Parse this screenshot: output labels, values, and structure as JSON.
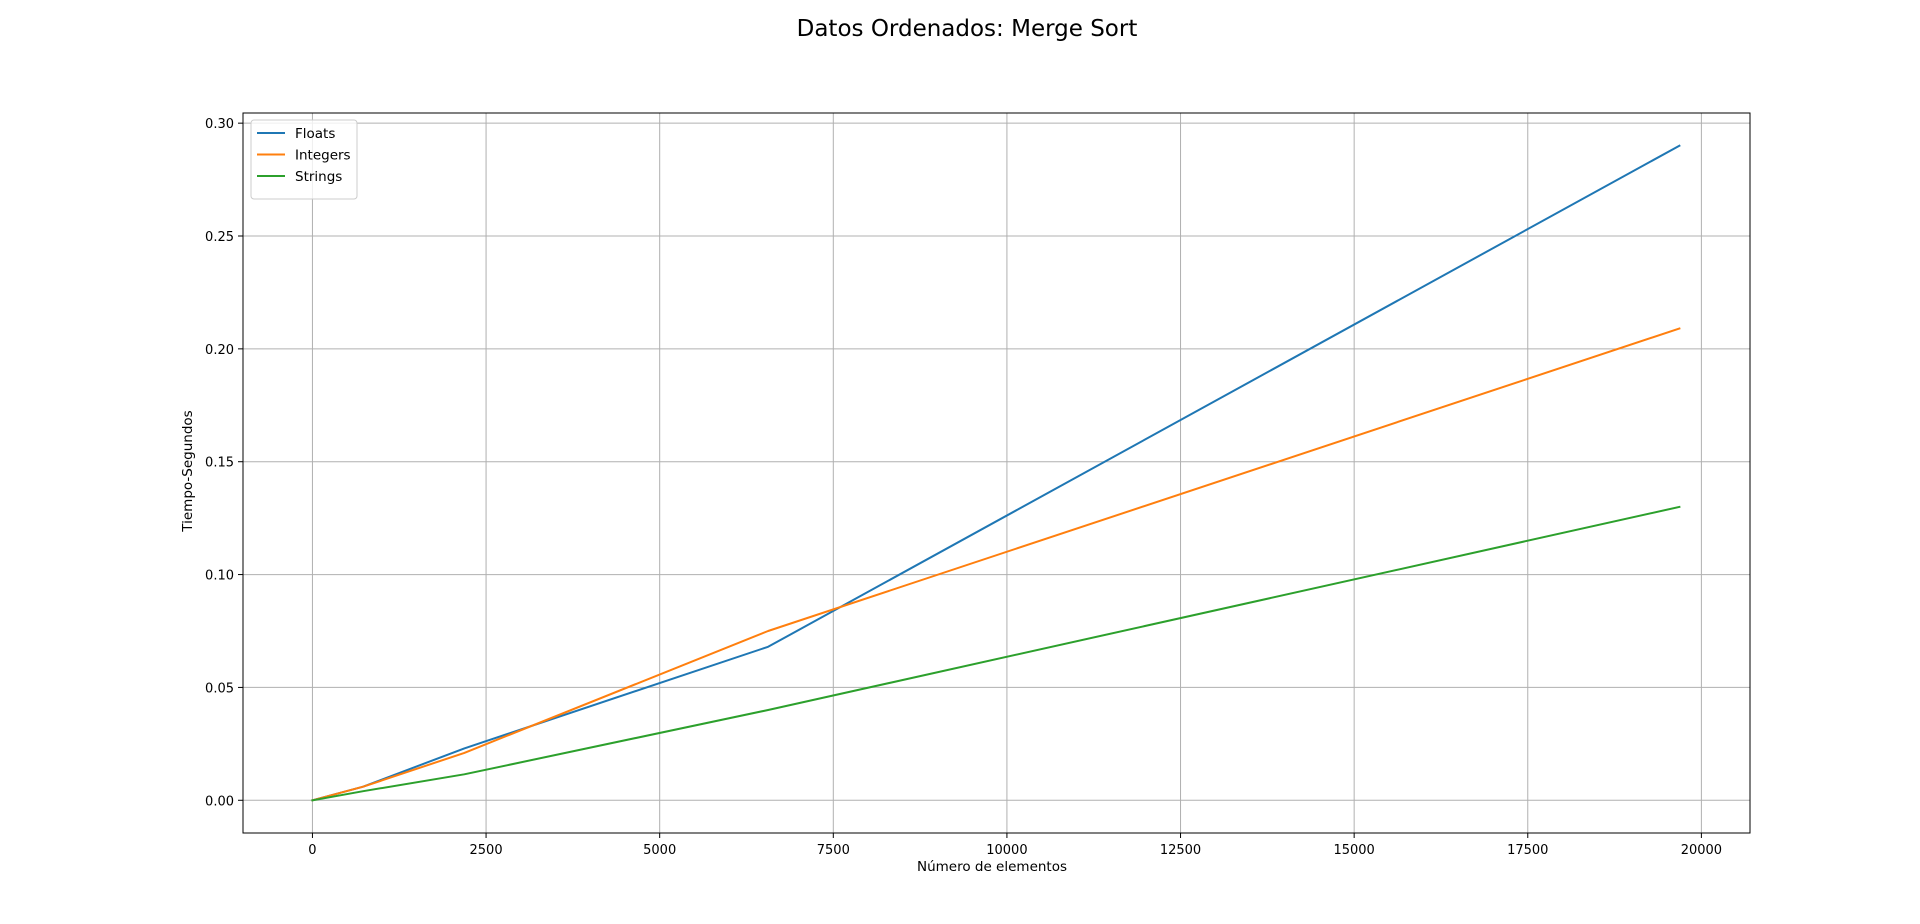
{
  "chart_data": {
    "type": "line",
    "title": "Datos Ordenados: Merge Sort",
    "xlabel": "Número de elementos",
    "ylabel": "Tiempo-Segundos",
    "xlim": [
      -1000,
      20700
    ],
    "ylim": [
      -0.0145,
      0.3045
    ],
    "xticks": [
      0,
      2500,
      5000,
      7500,
      10000,
      12500,
      15000,
      17500,
      20000
    ],
    "xtick_labels": [
      "0",
      "2500",
      "5000",
      "7500",
      "10000",
      "12500",
      "15000",
      "17500",
      "20000"
    ],
    "yticks": [
      0.0,
      0.05,
      0.1,
      0.15,
      0.2,
      0.25,
      0.3
    ],
    "ytick_labels": [
      "0.00",
      "0.05",
      "0.10",
      "0.15",
      "0.20",
      "0.25",
      "0.30"
    ],
    "grid": true,
    "legend_position": "top-left",
    "series": [
      {
        "name": "Floats",
        "color": "#1f77b4",
        "x": [
          0,
          729,
          2187,
          6561,
          19683
        ],
        "y": [
          0.0,
          0.006,
          0.023,
          0.068,
          0.29
        ]
      },
      {
        "name": "Integers",
        "color": "#ff7f0e",
        "x": [
          0,
          729,
          2187,
          6561,
          19683
        ],
        "y": [
          0.0,
          0.006,
          0.021,
          0.075,
          0.209
        ]
      },
      {
        "name": "Strings",
        "color": "#2ca02c",
        "x": [
          0,
          729,
          2187,
          6561,
          19683
        ],
        "y": [
          0.0,
          0.004,
          0.0115,
          0.04,
          0.13
        ]
      }
    ]
  }
}
